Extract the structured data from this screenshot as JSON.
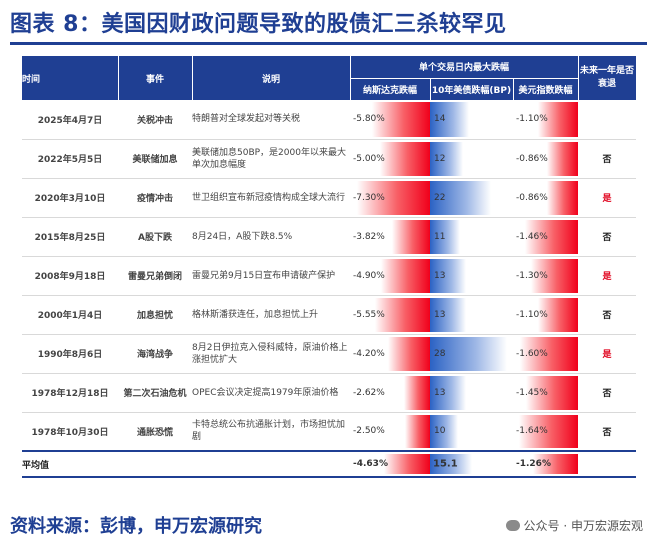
{
  "title": "图表 8：美国因财政问题导致的股债汇三杀较罕见",
  "table": {
    "headers": {
      "time": "时间",
      "event": "事件",
      "desc": "说明",
      "group": "单个交易日内最大跌幅",
      "nasdaq": "纳斯达克跌幅",
      "ust10y": "10年美债跌幅(BP)",
      "usd": "美元指数跌幅",
      "recession": "未来一年是否衰退"
    },
    "rows": [
      {
        "date": "2025年4月7日",
        "event": "关税冲击",
        "desc": "特朗普对全球发起对等关税",
        "nasdaq": "-5.80%",
        "nasdaq_v": 5.8,
        "ust": "14",
        "ust_v": 14,
        "usd": "-1.10%",
        "usd_v": 1.1,
        "recession": "",
        "rec_flag": "none"
      },
      {
        "date": "2022年5月5日",
        "event": "美联储加息",
        "desc": "美联储加息50BP，是2000年以来最大单次加息幅度",
        "nasdaq": "-5.00%",
        "nasdaq_v": 5.0,
        "ust": "12",
        "ust_v": 12,
        "usd": "-0.86%",
        "usd_v": 0.86,
        "recession": "否",
        "rec_flag": "no"
      },
      {
        "date": "2020年3月10日",
        "event": "疫情冲击",
        "desc": "世卫组织宣布新冠疫情构成全球大流行",
        "nasdaq": "-7.30%",
        "nasdaq_v": 7.3,
        "ust": "22",
        "ust_v": 22,
        "usd": "-0.86%",
        "usd_v": 0.86,
        "recession": "是",
        "rec_flag": "yes"
      },
      {
        "date": "2015年8月25日",
        "event": "A股下跌",
        "desc": "8月24日，A股下跌8.5%",
        "nasdaq": "-3.82%",
        "nasdaq_v": 3.82,
        "ust": "11",
        "ust_v": 11,
        "usd": "-1.46%",
        "usd_v": 1.46,
        "recession": "否",
        "rec_flag": "no"
      },
      {
        "date": "2008年9月18日",
        "event": "雷曼兄弟倒闭",
        "desc": "雷曼兄弟9月15日宣布申请破产保护",
        "nasdaq": "-4.90%",
        "nasdaq_v": 4.9,
        "ust": "13",
        "ust_v": 13,
        "usd": "-1.30%",
        "usd_v": 1.3,
        "recession": "是",
        "rec_flag": "yes"
      },
      {
        "date": "2000年1月4日",
        "event": "加息担忧",
        "desc": "格林斯潘获连任，加息担忧上升",
        "nasdaq": "-5.55%",
        "nasdaq_v": 5.55,
        "ust": "13",
        "ust_v": 13,
        "usd": "-1.10%",
        "usd_v": 1.1,
        "recession": "否",
        "rec_flag": "no"
      },
      {
        "date": "1990年8月6日",
        "event": "海湾战争",
        "desc": "8月2日伊拉克入侵科威特，原油价格上涨担忧扩大",
        "nasdaq": "-4.20%",
        "nasdaq_v": 4.2,
        "ust": "28",
        "ust_v": 28,
        "usd": "-1.60%",
        "usd_v": 1.6,
        "recession": "是",
        "rec_flag": "yes"
      },
      {
        "date": "1978年12月18日",
        "event": "第二次石油危机",
        "desc": "OPEC会议决定提高1979年原油价格",
        "nasdaq": "-2.62%",
        "nasdaq_v": 2.62,
        "ust": "13",
        "ust_v": 13,
        "usd": "-1.45%",
        "usd_v": 1.45,
        "recession": "否",
        "rec_flag": "no"
      },
      {
        "date": "1978年10月30日",
        "event": "通胀恐慌",
        "desc": "卡特总统公布抗通胀计划，市场担忧加剧",
        "nasdaq": "-2.50%",
        "nasdaq_v": 2.5,
        "ust": "10",
        "ust_v": 10,
        "usd": "-1.64%",
        "usd_v": 1.64,
        "recession": "否",
        "rec_flag": "no"
      }
    ],
    "average": {
      "label": "平均值",
      "nasdaq": "-4.63%",
      "nasdaq_v": 4.63,
      "ust": "15.1",
      "ust_v": 15.1,
      "usd": "-1.26%",
      "usd_v": 1.26
    }
  },
  "source": "资料来源：彭博，申万宏源研究",
  "watermark": "公众号 · 申万宏源宏观",
  "colors": {
    "brand": "#1f3f93",
    "negative": "#f0001b",
    "bond": "#2b62c4",
    "yes": "#e0001b"
  },
  "icons": {
    "watermark": "wechat-icon"
  }
}
